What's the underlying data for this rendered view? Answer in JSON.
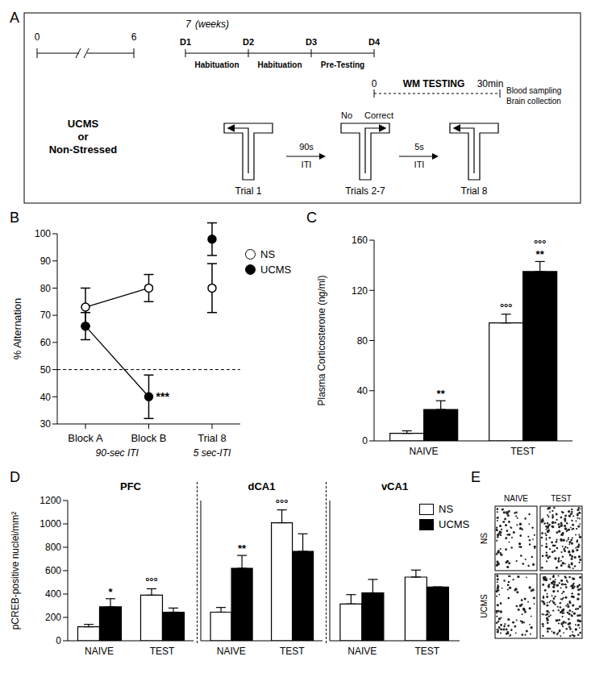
{
  "diagram": {
    "label": "A",
    "weeks": {
      "start": "0",
      "end": "6",
      "week": "7",
      "unit": "(weeks)"
    },
    "groups": [
      "UCMS",
      "or",
      "Non-Stressed"
    ],
    "days": [
      "D1",
      "D2",
      "D3",
      "D4"
    ],
    "phases": [
      "Habituation",
      "Habituation",
      "Pre-Testing"
    ],
    "test": {
      "start": "0",
      "title": "WM TESTING",
      "end": "30min"
    },
    "after_test": [
      "Blood sampling",
      "Brain collection"
    ],
    "trials": [
      "Trial 1",
      "Trials 2-7",
      "Trial 8"
    ],
    "choice": [
      "No",
      "Correct"
    ],
    "itis": [
      [
        "90s",
        "ITI"
      ],
      [
        "5s",
        "ITI"
      ]
    ]
  },
  "chart_data": [
    {
      "label": "B",
      "type": "line",
      "categories": [
        "Block A",
        "Block B",
        "Trial 8"
      ],
      "category_groups": [
        {
          "label": "90-sec ITI",
          "categories": [
            "Block A",
            "Block B"
          ]
        },
        {
          "label": "5 sec-ITI",
          "categories": [
            "Trial 8"
          ]
        }
      ],
      "ylabel": "% Alternation",
      "ylim": [
        30,
        100
      ],
      "yticks": [
        30,
        40,
        50,
        60,
        70,
        80,
        90,
        100
      ],
      "series": [
        {
          "name": "NS",
          "color": "#ffffff",
          "marker": "circle",
          "values": [
            73,
            80,
            80
          ],
          "errors": [
            7,
            5,
            9
          ]
        },
        {
          "name": "UCMS",
          "color": "#000000",
          "marker": "circle",
          "values": [
            66,
            40,
            98
          ],
          "errors": [
            5,
            8,
            6
          ]
        }
      ],
      "reference_lines": [
        {
          "y": 50,
          "line_style": "dashed"
        }
      ],
      "annotations": [
        {
          "category": "Block B",
          "series": "UCMS",
          "text": "***"
        }
      ],
      "legend": "right"
    },
    {
      "label": "C",
      "type": "bar",
      "categories": [
        "NAIVE",
        "TEST"
      ],
      "ylabel": "Plasma Corticosterone (ng/ml)",
      "ylim": [
        0,
        160
      ],
      "yticks": [
        0,
        40,
        80,
        120,
        160
      ],
      "series": [
        {
          "name": "NS",
          "color": "#ffffff",
          "values": [
            6,
            94
          ],
          "errors": [
            2,
            7
          ]
        },
        {
          "name": "UCMS",
          "color": "#000000",
          "values": [
            25,
            135
          ],
          "errors": [
            7,
            8
          ]
        }
      ],
      "annotations": [
        {
          "category": "NAIVE",
          "series": "UCMS",
          "text": "**"
        },
        {
          "category": "TEST",
          "series": "NS",
          "text": "°°°"
        },
        {
          "category": "TEST",
          "series": "UCMS",
          "text": "**"
        },
        {
          "category": "TEST",
          "series": "UCMS",
          "text": "°°°"
        }
      ]
    },
    {
      "label": "D",
      "type": "bar",
      "title": "PFC",
      "categories": [
        "NAIVE",
        "TEST"
      ],
      "ylabel": "pCREB-positive nuclei/mm²",
      "ylim": [
        0,
        1200
      ],
      "yticks": [
        0,
        200,
        400,
        600,
        800,
        1000,
        1200
      ],
      "series": [
        {
          "name": "NS",
          "color": "#ffffff",
          "values": [
            120,
            390
          ],
          "errors": [
            20,
            55
          ]
        },
        {
          "name": "UCMS",
          "color": "#000000",
          "values": [
            290,
            245
          ],
          "errors": [
            70,
            35
          ]
        }
      ],
      "annotations": [
        {
          "category": "NAIVE",
          "series": "UCMS",
          "text": "*"
        },
        {
          "category": "TEST",
          "series": "NS",
          "text": "°°°"
        }
      ]
    },
    {
      "type": "bar",
      "title": "dCA1",
      "categories": [
        "NAIVE",
        "TEST"
      ],
      "ylim": [
        0,
        1200
      ],
      "yticks": [
        0,
        200,
        400,
        600,
        800,
        1000,
        1200
      ],
      "tick_labels": "x",
      "series": [
        {
          "name": "NS",
          "color": "#ffffff",
          "values": [
            245,
            1010
          ],
          "errors": [
            40,
            110
          ]
        },
        {
          "name": "UCMS",
          "color": "#000000",
          "values": [
            620,
            765
          ],
          "errors": [
            110,
            150
          ]
        }
      ],
      "annotations": [
        {
          "category": "NAIVE",
          "series": "UCMS",
          "text": "**"
        },
        {
          "category": "TEST",
          "series": "NS",
          "text": "°°°"
        }
      ]
    },
    {
      "type": "bar",
      "title": "vCA1",
      "categories": [
        "NAIVE",
        "TEST"
      ],
      "ylim": [
        0,
        1200
      ],
      "yticks": [
        0,
        200,
        400,
        600,
        800,
        1000,
        1200
      ],
      "tick_labels": "x",
      "legend": "top-right",
      "series": [
        {
          "name": "NS",
          "color": "#ffffff",
          "values": [
            315,
            545
          ],
          "errors": [
            80,
            60
          ]
        },
        {
          "name": "UCMS",
          "color": "#000000",
          "values": [
            410,
            460
          ],
          "errors": [
            115,
            0
          ]
        }
      ]
    }
  ],
  "micrographs": {
    "label": "E",
    "columns": [
      "NAIVE",
      "TEST"
    ],
    "rows": [
      "NS",
      "UCMS"
    ]
  }
}
